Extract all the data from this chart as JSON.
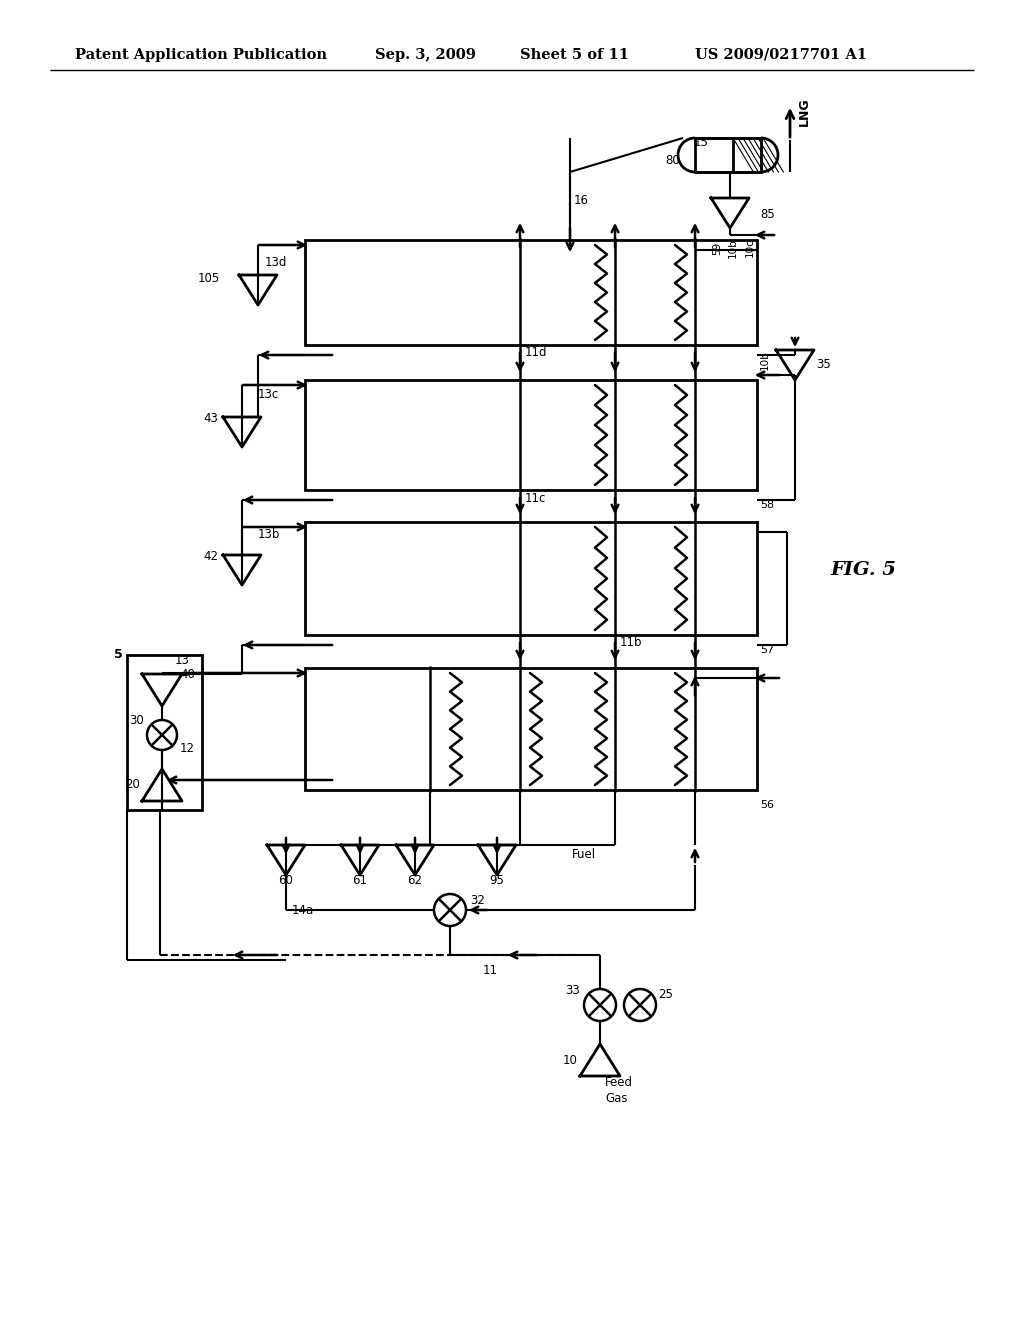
{
  "title_left": "Patent Application Publication",
  "title_mid": "Sep. 3, 2009",
  "title_sheet": "Sheet 5 of 11",
  "title_right": "US 2009/0217701 A1",
  "fig_label": "FIG. 5",
  "bg_color": "#ffffff",
  "line_color": "#000000",
  "header_fontsize": 10.5,
  "label_fontsize": 8.5
}
